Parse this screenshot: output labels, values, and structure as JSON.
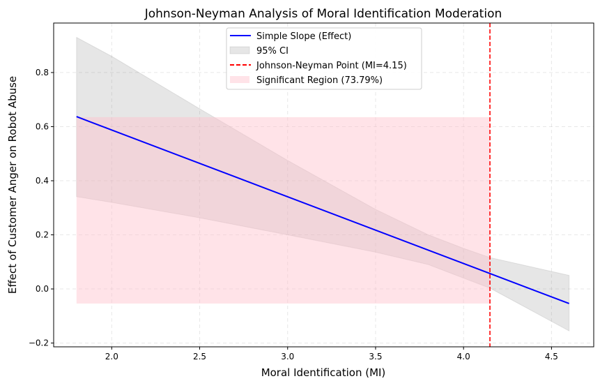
{
  "chart_data": {
    "type": "line",
    "title": "Johnson-Neyman Analysis of Moral Identification Moderation",
    "xlabel": "Moral Identification (MI)",
    "ylabel": "Effect of Customer Anger on Robot Abuse",
    "xlim": [
      1.67,
      4.74
    ],
    "ylim": [
      -0.214,
      0.983
    ],
    "xticks": [
      2.0,
      2.5,
      3.0,
      3.5,
      4.0,
      4.5
    ],
    "xtick_labels": [
      "2.0",
      "2.5",
      "3.0",
      "3.5",
      "4.0",
      "4.5"
    ],
    "yticks": [
      -0.2,
      0.0,
      0.2,
      0.4,
      0.6,
      0.8
    ],
    "ytick_labels": [
      "−0.2",
      "0.0",
      "0.2",
      "0.4",
      "0.6",
      "0.8"
    ],
    "grid": true,
    "legend_placement": "top-center",
    "series": [
      {
        "name": "Simple Slope (Effect)",
        "color": "#0000ff",
        "x": [
          1.8,
          4.6
        ],
        "y": [
          0.637,
          -0.054
        ]
      },
      {
        "name": "95% CI",
        "color": "#808080",
        "x": [
          1.8,
          2.0,
          2.5,
          3.0,
          3.5,
          3.8,
          4.0,
          4.15,
          4.6
        ],
        "upper": [
          0.93,
          0.86,
          0.666,
          0.475,
          0.294,
          0.2,
          0.15,
          0.116,
          0.05
        ],
        "lower": [
          0.341,
          0.32,
          0.263,
          0.2,
          0.136,
          0.09,
          0.04,
          0.003,
          -0.155
        ]
      },
      {
        "name": "Johnson-Neyman Point (MI=4.15)",
        "color": "#ff0000",
        "x": 4.15
      },
      {
        "name": "Significant Region (73.79%)",
        "color": "#ffc0cb",
        "x": [
          1.8,
          4.15
        ],
        "y": [
          -0.054,
          0.635
        ]
      }
    ]
  }
}
